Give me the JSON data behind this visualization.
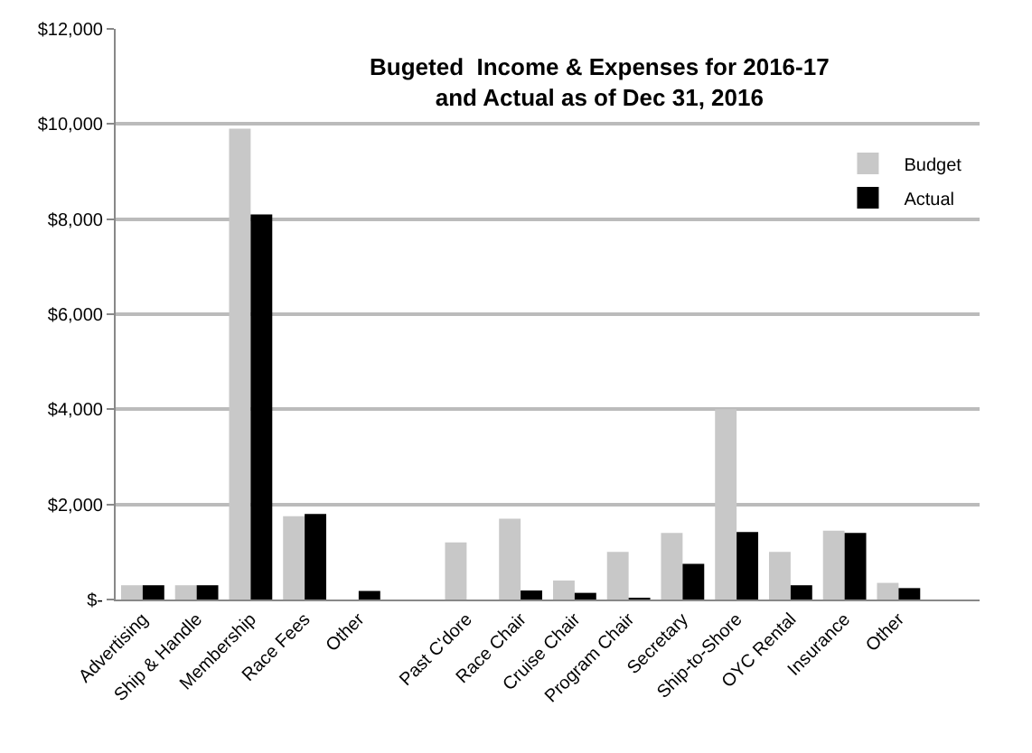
{
  "chart_data": {
    "type": "bar",
    "title": "Bugeted  Income & Expenses for 2016-17\nand Actual as of Dec 31, 2016",
    "categories": [
      "Advertising",
      "Ship & Handle",
      "Membership",
      "Race Fees",
      "Other",
      null,
      "Past C'dore",
      "Race Chair",
      "Cruise Chair",
      "Program Chair",
      "Secretary",
      "Ship-to-Shore",
      "OYC Rental",
      "Insurance",
      "Other",
      null
    ],
    "series": [
      {
        "name": "Budget",
        "color": "#c8c8c8",
        "values": [
          300,
          300,
          9900,
          1750,
          null,
          null,
          1200,
          1700,
          400,
          1000,
          1400,
          4000,
          1000,
          1450,
          350,
          null
        ]
      },
      {
        "name": "Actual",
        "color": "#000000",
        "values": [
          300,
          300,
          8100,
          1800,
          180,
          null,
          null,
          190,
          140,
          30,
          750,
          1420,
          300,
          1400,
          240,
          null
        ]
      }
    ],
    "ylim": [
      0,
      12000
    ],
    "yticks": [
      {
        "value": 0,
        "label": "$-"
      },
      {
        "value": 2000,
        "label": "$2,000"
      },
      {
        "value": 4000,
        "label": "$4,000"
      },
      {
        "value": 6000,
        "label": "$6,000"
      },
      {
        "value": 8000,
        "label": "$8,000"
      },
      {
        "value": 10000,
        "label": "$10,000"
      },
      {
        "value": 12000,
        "label": "$12,000"
      }
    ],
    "grid": "y",
    "legend": "top right"
  }
}
